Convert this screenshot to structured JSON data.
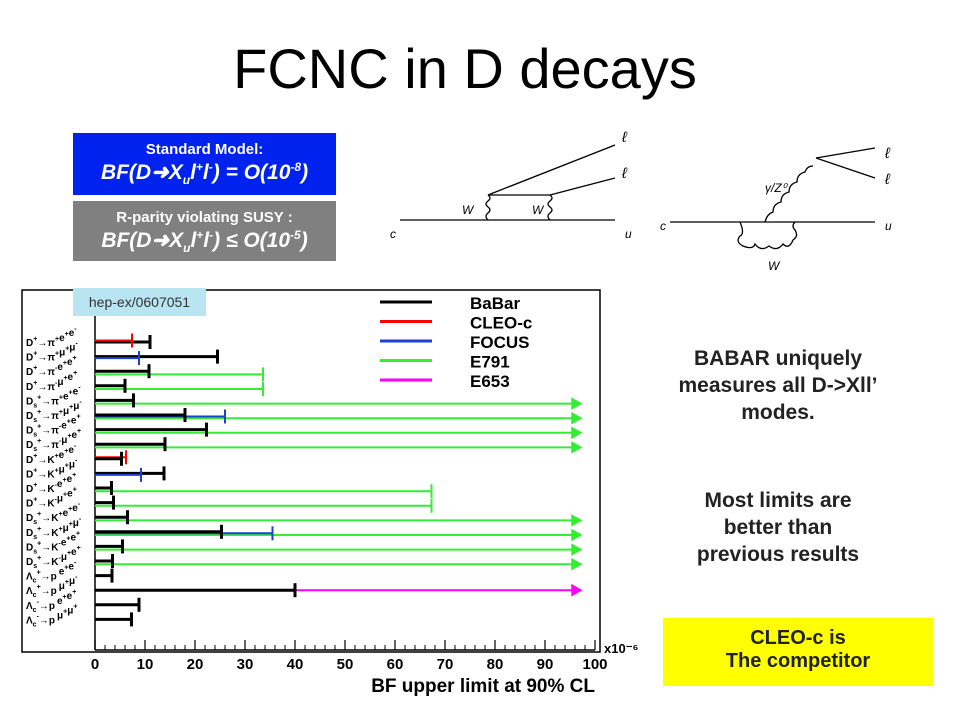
{
  "slide": {
    "title": "FCNC in D decays",
    "sm_label": "Standard Model:",
    "sm_eq": {
      "pre": "BF(D",
      "x": "X",
      "u": "u",
      "l": "l",
      "plus": "+",
      "minus": "-",
      "paren": ") = O(10",
      "exp": "-8",
      "close": ")"
    },
    "rp_label": "R-parity violating SUSY :",
    "rp_eq": {
      "pre": "BF(D",
      "x": "X",
      "u": "u",
      "l": "l",
      "plus": "+",
      "minus": "-",
      "paren": ") ≤ O(10",
      "exp": "-5",
      "close": ")"
    },
    "reference": "hep-ex/0607051",
    "note1": [
      "BABAR uniquely",
      "measures all D->Xll’",
      "modes."
    ],
    "note2": [
      "Most limits are",
      "better than",
      "previous results"
    ],
    "competitor": [
      "CLEO-c is",
      "The competitor"
    ]
  },
  "diagrams": {
    "left": {
      "l1": "ℓ",
      "l2": "ℓ",
      "w1": "W",
      "w2": "W",
      "c": "c",
      "u": "u"
    },
    "right": {
      "boson": "γ/Z⁰",
      "l1": "ℓ",
      "l2": "ℓ",
      "w": "W",
      "c": "c",
      "u": "u"
    }
  },
  "chart_data": {
    "type": "bar",
    "orientation": "horizontal",
    "xlabel": "BF upper limit at 90% CL",
    "x_multiplier": "x10⁻⁶",
    "xlim": [
      0,
      100
    ],
    "xticks": [
      0,
      10,
      20,
      30,
      40,
      50,
      60,
      70,
      80,
      90,
      100
    ],
    "legend_position": "top-right",
    "series": [
      {
        "name": "BaBar",
        "color": "#000000"
      },
      {
        "name": "CLEO-c",
        "color": "#ff0000"
      },
      {
        "name": "FOCUS",
        "color": "#1f3fcf"
      },
      {
        "name": "E791",
        "color": "#33ee33"
      },
      {
        "name": "E653",
        "color": "#ff00ff"
      }
    ],
    "modes": [
      {
        "particle": "D",
        "sub": "",
        "sup": "+",
        "products": [
          [
            "π",
            "+"
          ],
          [
            "e",
            "+"
          ],
          [
            "e",
            "-"
          ]
        ],
        "limits": {
          "BaBar": 11,
          "CLEO-c": 7.4
        }
      },
      {
        "particle": "D",
        "sub": "",
        "sup": "+",
        "products": [
          [
            "π",
            "+"
          ],
          [
            "μ",
            "+"
          ],
          [
            "μ",
            "-"
          ]
        ],
        "limits": {
          "BaBar": 24.5,
          "FOCUS": 8.8
        }
      },
      {
        "particle": "D",
        "sub": "",
        "sup": "+",
        "products": [
          [
            "π",
            "-"
          ],
          [
            "e",
            "+"
          ],
          [
            "e",
            "+"
          ]
        ],
        "limits": {
          "BaBar": 10.8,
          "E791": 33.6
        }
      },
      {
        "particle": "D",
        "sub": "",
        "sup": "+",
        "products": [
          [
            "π",
            "-"
          ],
          [
            "μ",
            "+"
          ],
          [
            "e",
            "+"
          ]
        ],
        "limits": {
          "BaBar": 6,
          "E791": 33.6
        }
      },
      {
        "particle": "D",
        "sub": "s",
        "sup": "+",
        "products": [
          [
            "π",
            "+"
          ],
          [
            "e",
            "+"
          ],
          [
            "e",
            "-"
          ]
        ],
        "limits": {
          "BaBar": 7.7,
          "E791": 97
        },
        "arrow": [
          "E791"
        ]
      },
      {
        "particle": "D",
        "sub": "s",
        "sup": "+",
        "products": [
          [
            "π",
            "+"
          ],
          [
            "μ",
            "+"
          ],
          [
            "μ",
            "-"
          ]
        ],
        "limits": {
          "BaBar": 18,
          "FOCUS": 26,
          "E791": 97
        },
        "arrow": [
          "E791"
        ]
      },
      {
        "particle": "D",
        "sub": "s",
        "sup": "+",
        "products": [
          [
            "π",
            "-"
          ],
          [
            "e",
            "+"
          ],
          [
            "e",
            "+"
          ]
        ],
        "limits": {
          "BaBar": 22.3,
          "E791": 97
        },
        "arrow": [
          "E791"
        ]
      },
      {
        "particle": "D",
        "sub": "s",
        "sup": "+",
        "products": [
          [
            "π",
            "-"
          ],
          [
            "μ",
            "+"
          ],
          [
            "e",
            "+"
          ]
        ],
        "limits": {
          "BaBar": 14,
          "E791": 97
        },
        "arrow": [
          "E791"
        ]
      },
      {
        "particle": "D",
        "sub": "",
        "sup": "+",
        "products": [
          [
            "K",
            "+"
          ],
          [
            "e",
            "+"
          ],
          [
            "e",
            "-"
          ]
        ],
        "limits": {
          "BaBar": 5.3,
          "CLEO-c": 6.2
        }
      },
      {
        "particle": "D",
        "sub": "",
        "sup": "+",
        "products": [
          [
            "K",
            "+"
          ],
          [
            "μ",
            "+"
          ],
          [
            "μ",
            "-"
          ]
        ],
        "limits": {
          "BaBar": 13.8,
          "FOCUS": 9.2
        }
      },
      {
        "particle": "D",
        "sub": "",
        "sup": "+",
        "products": [
          [
            "K",
            "-"
          ],
          [
            "e",
            "+"
          ],
          [
            "e",
            "+"
          ]
        ],
        "limits": {
          "BaBar": 3.3,
          "E791": 67.3
        }
      },
      {
        "particle": "D",
        "sub": "",
        "sup": "+",
        "products": [
          [
            "K",
            "-"
          ],
          [
            "μ",
            "+"
          ],
          [
            "e",
            "+"
          ]
        ],
        "limits": {
          "BaBar": 3.7,
          "E791": 67.3
        }
      },
      {
        "particle": "D",
        "sub": "s",
        "sup": "+",
        "products": [
          [
            "K",
            "+"
          ],
          [
            "e",
            "+"
          ],
          [
            "e",
            "-"
          ]
        ],
        "limits": {
          "BaBar": 6.5,
          "E791": 97
        },
        "arrow": [
          "E791"
        ]
      },
      {
        "particle": "D",
        "sub": "s",
        "sup": "+",
        "products": [
          [
            "K",
            "+"
          ],
          [
            "μ",
            "+"
          ],
          [
            "μ",
            "-"
          ]
        ],
        "limits": {
          "BaBar": 25.3,
          "FOCUS": 35.5,
          "E791": 97
        },
        "arrow": [
          "E791"
        ]
      },
      {
        "particle": "D",
        "sub": "s",
        "sup": "+",
        "products": [
          [
            "K",
            "-"
          ],
          [
            "e",
            "+"
          ],
          [
            "e",
            "+"
          ]
        ],
        "limits": {
          "BaBar": 5.5,
          "E791": 97
        },
        "arrow": [
          "E791"
        ]
      },
      {
        "particle": "D",
        "sub": "s",
        "sup": "+",
        "products": [
          [
            "K",
            "-"
          ],
          [
            "μ",
            "+"
          ],
          [
            "e",
            "+"
          ]
        ],
        "limits": {
          "BaBar": 3.5,
          "E791": 97
        },
        "arrow": [
          "E791"
        ]
      },
      {
        "particle": "Λ",
        "sub": "c",
        "sup": "+",
        "products": [
          [
            "p",
            " "
          ],
          [
            "e",
            "+"
          ],
          [
            "e",
            "-"
          ]
        ],
        "limits": {
          "BaBar": 3.4
        }
      },
      {
        "particle": "Λ",
        "sub": "c",
        "sup": "+",
        "products": [
          [
            "p",
            " "
          ],
          [
            "μ",
            "+"
          ],
          [
            "μ",
            "-"
          ]
        ],
        "limits": {
          "BaBar": 40,
          "E653": 97
        },
        "arrow": [
          "E653"
        ]
      },
      {
        "particle": "Λ",
        "sub": "c",
        "sup": "-",
        "products": [
          [
            "p",
            " "
          ],
          [
            "e",
            "+"
          ],
          [
            "e",
            "+"
          ]
        ],
        "limits": {
          "BaBar": 8.8
        }
      },
      {
        "particle": "Λ",
        "sub": "c",
        "sup": "-",
        "products": [
          [
            "p",
            " "
          ],
          [
            "μ",
            "+"
          ],
          [
            "μ",
            "+"
          ]
        ],
        "limits": {
          "BaBar": 7.3
        }
      }
    ]
  }
}
